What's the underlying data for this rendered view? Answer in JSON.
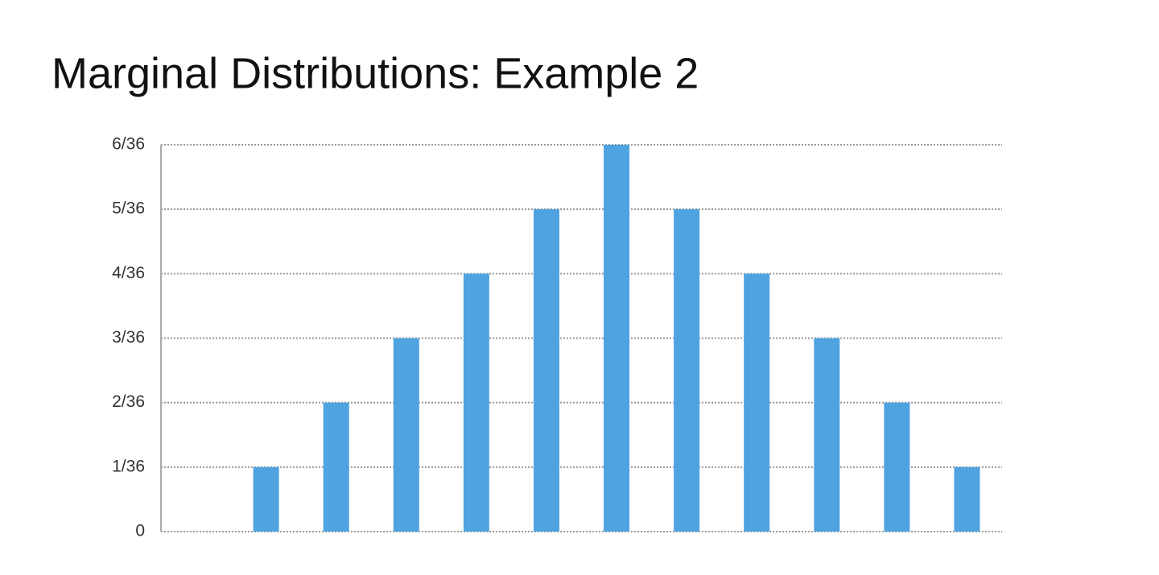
{
  "chart_data": {
    "type": "bar",
    "title": "Marginal Distributions: Example 2",
    "categories": [
      null,
      null,
      null,
      null,
      null,
      null,
      null,
      null,
      null,
      null,
      null,
      null
    ],
    "values": [
      0,
      0.02778,
      0.05556,
      0.08333,
      0.11111,
      0.13889,
      0.16667,
      0.13889,
      0.11111,
      0.08333,
      0.05556,
      0.02778
    ],
    "color": "#4ea3e0",
    "ylim": [
      0,
      0.16667
    ],
    "yticks": [
      0,
      {
        "value": 0.02778,
        "label": "1/36"
      },
      {
        "value": 0.05556,
        "label": "2/36"
      },
      {
        "value": 0.08333,
        "label": "3/36"
      },
      {
        "value": 0.11111,
        "label": "4/36"
      },
      {
        "value": 0.13889,
        "label": "5/36"
      },
      {
        "value": 0.16667,
        "label": "6/36"
      }
    ],
    "grid": true
  }
}
